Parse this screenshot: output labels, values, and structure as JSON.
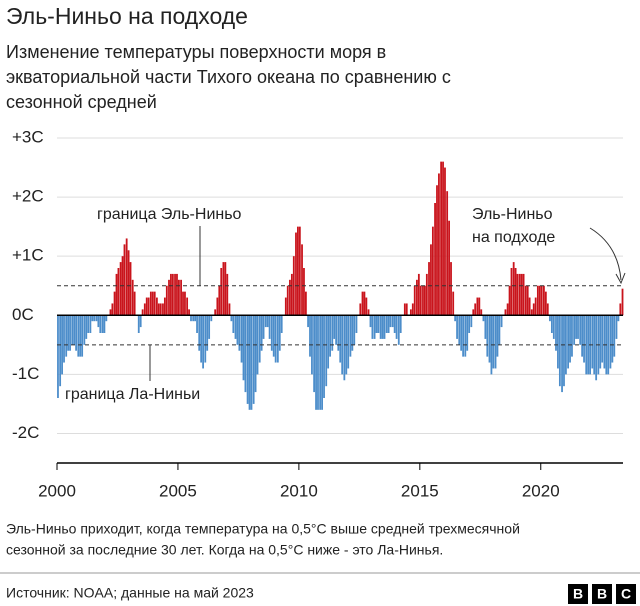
{
  "chart_data": {
    "type": "bar",
    "title": "Эль-Ниньо на подходе",
    "subtitle": [
      "Изменение температуры поверхности моря в",
      "экваториальной части Тихого океана по сравнению с",
      "сезонной средней"
    ],
    "color_above_zero": "#c9141c",
    "color_below_zero": "#4c8dca",
    "xlim": [
      2000,
      2023.4
    ],
    "xticks": [
      2000,
      2005,
      2010,
      2015,
      2020
    ],
    "ylim": [
      -2.5,
      3
    ],
    "yticks": [
      {
        "value": 3,
        "label": "+3C"
      },
      {
        "value": 2,
        "label": "+2C"
      },
      {
        "value": 1,
        "label": "+1C"
      },
      {
        "value": 0,
        "label": "0C"
      },
      {
        "value": -1,
        "label": "-1C"
      },
      {
        "value": -2,
        "label": "-2C"
      }
    ],
    "grid": true,
    "thresholds": [
      {
        "value": 0.5,
        "label": "граница Эль-Ниньо"
      },
      {
        "value": -0.5,
        "label": "граница Ла-Ниньи"
      }
    ],
    "annotation": [
      "Эль-Ниньо",
      "на подходе"
    ],
    "x": [
      2000.04,
      2000.13,
      2000.21,
      2000.29,
      2000.38,
      2000.46,
      2000.54,
      2000.63,
      2000.71,
      2000.79,
      2000.88,
      2000.96,
      2001.04,
      2001.13,
      2001.21,
      2001.29,
      2001.38,
      2001.46,
      2001.54,
      2001.63,
      2001.71,
      2001.79,
      2001.88,
      2001.96,
      2002.04,
      2002.13,
      2002.21,
      2002.29,
      2002.38,
      2002.46,
      2002.54,
      2002.63,
      2002.71,
      2002.79,
      2002.88,
      2002.96,
      2003.04,
      2003.13,
      2003.21,
      2003.29,
      2003.38,
      2003.46,
      2003.54,
      2003.63,
      2003.71,
      2003.79,
      2003.88,
      2003.96,
      2004.04,
      2004.13,
      2004.21,
      2004.29,
      2004.38,
      2004.46,
      2004.54,
      2004.63,
      2004.71,
      2004.79,
      2004.88,
      2004.96,
      2005.04,
      2005.13,
      2005.21,
      2005.29,
      2005.38,
      2005.46,
      2005.54,
      2005.63,
      2005.71,
      2005.79,
      2005.88,
      2005.96,
      2006.04,
      2006.13,
      2006.21,
      2006.29,
      2006.38,
      2006.46,
      2006.54,
      2006.63,
      2006.71,
      2006.79,
      2006.88,
      2006.96,
      2007.04,
      2007.13,
      2007.21,
      2007.29,
      2007.38,
      2007.46,
      2007.54,
      2007.63,
      2007.71,
      2007.79,
      2007.88,
      2007.96,
      2008.04,
      2008.13,
      2008.21,
      2008.29,
      2008.38,
      2008.46,
      2008.54,
      2008.63,
      2008.71,
      2008.79,
      2008.88,
      2008.96,
      2009.04,
      2009.13,
      2009.21,
      2009.29,
      2009.38,
      2009.46,
      2009.54,
      2009.63,
      2009.71,
      2009.79,
      2009.88,
      2009.96,
      2010.04,
      2010.13,
      2010.21,
      2010.29,
      2010.38,
      2010.46,
      2010.54,
      2010.63,
      2010.71,
      2010.79,
      2010.88,
      2010.96,
      2011.04,
      2011.13,
      2011.21,
      2011.29,
      2011.38,
      2011.46,
      2011.54,
      2011.63,
      2011.71,
      2011.79,
      2011.88,
      2011.96,
      2012.04,
      2012.13,
      2012.21,
      2012.29,
      2012.38,
      2012.46,
      2012.54,
      2012.63,
      2012.71,
      2012.79,
      2012.88,
      2012.96,
      2013.04,
      2013.13,
      2013.21,
      2013.29,
      2013.38,
      2013.46,
      2013.54,
      2013.63,
      2013.71,
      2013.79,
      2013.88,
      2013.96,
      2014.04,
      2014.13,
      2014.21,
      2014.29,
      2014.38,
      2014.46,
      2014.54,
      2014.63,
      2014.71,
      2014.79,
      2014.88,
      2014.96,
      2015.04,
      2015.13,
      2015.21,
      2015.29,
      2015.38,
      2015.46,
      2015.54,
      2015.63,
      2015.71,
      2015.79,
      2015.88,
      2015.96,
      2016.04,
      2016.13,
      2016.21,
      2016.29,
      2016.38,
      2016.46,
      2016.54,
      2016.63,
      2016.71,
      2016.79,
      2016.88,
      2016.96,
      2017.04,
      2017.13,
      2017.21,
      2017.29,
      2017.38,
      2017.46,
      2017.54,
      2017.63,
      2017.71,
      2017.79,
      2017.88,
      2017.96,
      2018.04,
      2018.13,
      2018.21,
      2018.29,
      2018.38,
      2018.46,
      2018.54,
      2018.63,
      2018.71,
      2018.79,
      2018.88,
      2018.96,
      2019.04,
      2019.13,
      2019.21,
      2019.29,
      2019.38,
      2019.46,
      2019.54,
      2019.63,
      2019.71,
      2019.79,
      2019.88,
      2019.96,
      2020.04,
      2020.13,
      2020.21,
      2020.29,
      2020.38,
      2020.46,
      2020.54,
      2020.63,
      2020.71,
      2020.79,
      2020.88,
      2020.96,
      2021.04,
      2021.13,
      2021.21,
      2021.29,
      2021.38,
      2021.46,
      2021.54,
      2021.63,
      2021.71,
      2021.79,
      2021.88,
      2021.96,
      2022.04,
      2022.13,
      2022.21,
      2022.29,
      2022.38,
      2022.46,
      2022.54,
      2022.63,
      2022.71,
      2022.79,
      2022.88,
      2022.96,
      2023.04,
      2023.13,
      2023.21,
      2023.29,
      2023.38
    ],
    "values": [
      -1.4,
      -1.2,
      -1.0,
      -0.8,
      -0.7,
      -0.6,
      -0.6,
      -0.5,
      -0.5,
      -0.6,
      -0.7,
      -0.7,
      -0.7,
      -0.5,
      -0.4,
      -0.3,
      -0.3,
      -0.1,
      -0.1,
      -0.1,
      -0.2,
      -0.3,
      -0.3,
      -0.3,
      -0.1,
      0.0,
      0.1,
      0.2,
      0.4,
      0.7,
      0.8,
      0.9,
      1.0,
      1.2,
      1.3,
      1.1,
      0.9,
      0.6,
      0.4,
      0.0,
      -0.3,
      -0.2,
      0.1,
      0.2,
      0.3,
      0.3,
      0.4,
      0.4,
      0.4,
      0.3,
      0.2,
      0.2,
      0.2,
      0.3,
      0.5,
      0.6,
      0.7,
      0.7,
      0.7,
      0.7,
      0.6,
      0.6,
      0.4,
      0.4,
      0.3,
      0.1,
      -0.1,
      -0.1,
      -0.1,
      -0.3,
      -0.6,
      -0.8,
      -0.9,
      -0.8,
      -0.6,
      -0.4,
      -0.1,
      0.0,
      0.1,
      0.3,
      0.5,
      0.8,
      0.9,
      0.9,
      0.7,
      0.2,
      -0.1,
      -0.3,
      -0.4,
      -0.5,
      -0.6,
      -0.8,
      -1.1,
      -1.3,
      -1.5,
      -1.6,
      -1.6,
      -1.5,
      -1.3,
      -1.0,
      -0.8,
      -0.6,
      -0.4,
      -0.2,
      -0.2,
      -0.4,
      -0.6,
      -0.7,
      -0.8,
      -0.8,
      -0.6,
      -0.3,
      0.0,
      0.3,
      0.5,
      0.6,
      0.7,
      1.0,
      1.4,
      1.5,
      1.5,
      1.2,
      0.8,
      0.4,
      -0.2,
      -0.7,
      -1.0,
      -1.3,
      -1.6,
      -1.6,
      -1.6,
      -1.6,
      -1.4,
      -1.2,
      -0.9,
      -0.7,
      -0.6,
      -0.4,
      -0.5,
      -0.6,
      -0.8,
      -1.0,
      -1.1,
      -1.0,
      -0.9,
      -0.7,
      -0.6,
      -0.5,
      -0.3,
      0.0,
      0.2,
      0.4,
      0.4,
      0.3,
      0.1,
      -0.2,
      -0.4,
      -0.4,
      -0.3,
      -0.3,
      -0.4,
      -0.4,
      -0.4,
      -0.3,
      -0.3,
      -0.2,
      -0.2,
      -0.3,
      -0.4,
      -0.5,
      -0.3,
      0.0,
      0.2,
      0.2,
      0.0,
      0.1,
      0.2,
      0.5,
      0.6,
      0.7,
      0.5,
      0.5,
      0.5,
      0.7,
      0.9,
      1.2,
      1.5,
      1.9,
      2.2,
      2.4,
      2.6,
      2.6,
      2.5,
      2.1,
      1.6,
      0.9,
      0.4,
      -0.1,
      -0.4,
      -0.5,
      -0.6,
      -0.7,
      -0.7,
      -0.6,
      -0.3,
      -0.2,
      0.1,
      0.2,
      0.3,
      0.3,
      0.1,
      -0.1,
      -0.4,
      -0.7,
      -0.8,
      -1.0,
      -0.9,
      -0.9,
      -0.7,
      -0.5,
      -0.2,
      0.0,
      0.1,
      0.2,
      0.5,
      0.8,
      0.9,
      0.8,
      0.7,
      0.7,
      0.7,
      0.7,
      0.5,
      0.5,
      0.3,
      0.1,
      0.2,
      0.3,
      0.5,
      0.5,
      0.5,
      0.5,
      0.4,
      0.2,
      -0.1,
      -0.3,
      -0.4,
      -0.6,
      -0.9,
      -1.2,
      -1.3,
      -1.2,
      -1.0,
      -0.9,
      -0.8,
      -0.7,
      -0.5,
      -0.4,
      -0.4,
      -0.5,
      -0.7,
      -0.8,
      -1.0,
      -1.0,
      -1.0,
      -0.9,
      -1.0,
      -1.1,
      -1.0,
      -0.9,
      -0.8,
      -0.9,
      -1.0,
      -1.0,
      -0.9,
      -0.8,
      -0.7,
      -0.4,
      -0.1,
      0.2,
      0.45
    ],
    "note": [
      "Эль-Ниньо приходит, когда температура на 0,5°C выше средней трехмесячной",
      "сезонной за последние 30 лет. Когда на 0,5°C ниже - это Ла-Нинья."
    ],
    "source": "Источник: NOAA; данные на май 2023",
    "logo": [
      "B",
      "B",
      "C"
    ]
  }
}
